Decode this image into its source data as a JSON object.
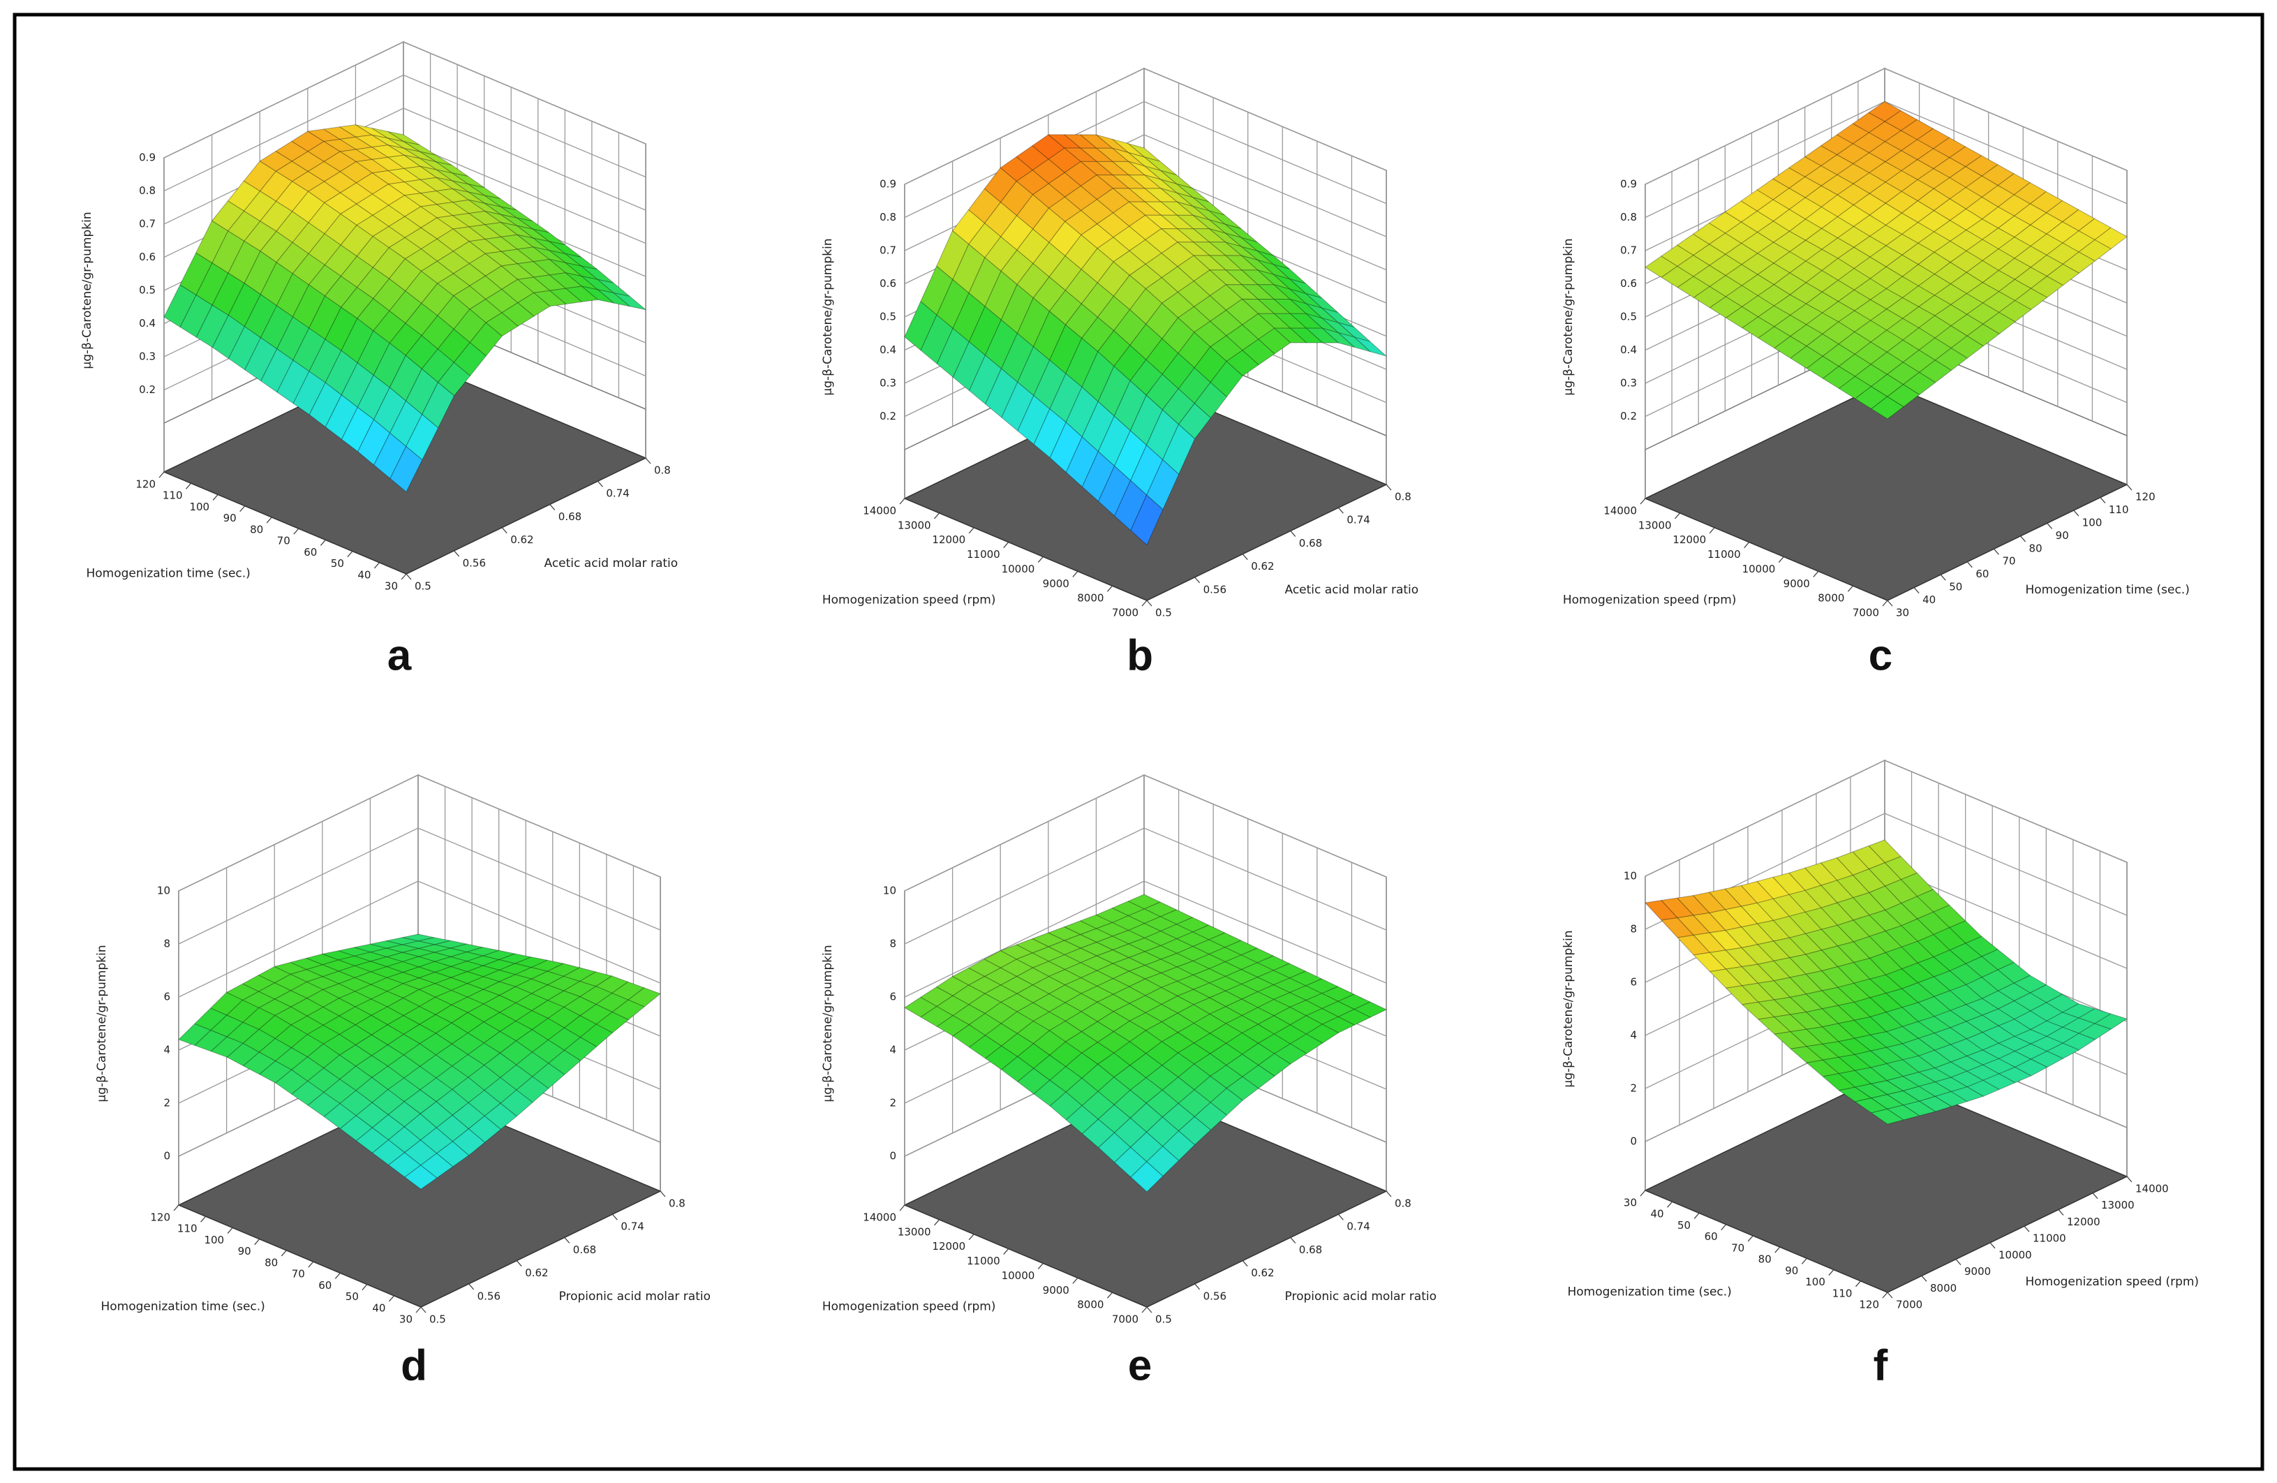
{
  "chart_data": [
    {
      "type": "surface3d",
      "title": "a",
      "xlabel": "Homogenization time (sec.)",
      "ylabel": "Acetic acid molar ratio",
      "zlabel": "µg-β-Carotene/gr-pumpkin",
      "xlim": [
        30,
        120
      ],
      "ylim": [
        0.5,
        0.8
      ],
      "zlim": [
        0.1,
        0.9
      ],
      "xticks": [
        30,
        40,
        50,
        60,
        70,
        80,
        90,
        100,
        110,
        120
      ],
      "yticks": [
        0.5,
        0.56,
        0.62,
        0.68,
        0.74,
        0.8
      ],
      "zticks": [
        0.2,
        0.3,
        0.4,
        0.5,
        0.6,
        0.7,
        0.8,
        0.9
      ],
      "floor_color": "#5a5a5a",
      "colormap": [
        "#2a4cff",
        "#22e6ff",
        "#2ed82e",
        "#f2e22a",
        "#ff2a00"
      ],
      "surface": {
        "x": [
          30,
          48,
          66,
          84,
          102,
          120
        ],
        "y": [
          0.5,
          0.56,
          0.62,
          0.68,
          0.74,
          0.8
        ],
        "z": [
          [
            0.2,
            0.42,
            0.53,
            0.55,
            0.5,
            0.4
          ],
          [
            0.26,
            0.48,
            0.59,
            0.61,
            0.56,
            0.46
          ],
          [
            0.31,
            0.53,
            0.64,
            0.66,
            0.61,
            0.51
          ],
          [
            0.35,
            0.57,
            0.68,
            0.7,
            0.65,
            0.55
          ],
          [
            0.39,
            0.61,
            0.72,
            0.74,
            0.69,
            0.59
          ],
          [
            0.42,
            0.64,
            0.75,
            0.77,
            0.72,
            0.62
          ]
        ]
      }
    },
    {
      "type": "surface3d",
      "title": "b",
      "xlabel": "Homogenization speed (rpm)",
      "ylabel": "Acetic acid molar ratio",
      "zlabel": "µg-β-Carotene/gr-pumpkin",
      "xlim": [
        7000,
        14000
      ],
      "ylim": [
        0.5,
        0.8
      ],
      "zlim": [
        0.1,
        0.9
      ],
      "xticks": [
        7000,
        8000,
        9000,
        10000,
        11000,
        12000,
        13000,
        14000
      ],
      "yticks": [
        0.5,
        0.56,
        0.62,
        0.68,
        0.74,
        0.8
      ],
      "zticks": [
        0.2,
        0.3,
        0.4,
        0.5,
        0.6,
        0.7,
        0.8,
        0.9
      ],
      "floor_color": "#5a5a5a",
      "colormap": [
        "#2a4cff",
        "#22e6ff",
        "#2ed82e",
        "#f2e22a",
        "#ff2a00"
      ],
      "surface": {
        "x": [
          7000,
          8400,
          9800,
          11200,
          12600,
          14000
        ],
        "y": [
          0.5,
          0.56,
          0.62,
          0.68,
          0.74,
          0.8
        ],
        "z": [
          [
            0.12,
            0.37,
            0.49,
            0.52,
            0.45,
            0.34
          ],
          [
            0.19,
            0.44,
            0.56,
            0.59,
            0.52,
            0.41
          ],
          [
            0.26,
            0.51,
            0.63,
            0.66,
            0.59,
            0.48
          ],
          [
            0.32,
            0.57,
            0.69,
            0.72,
            0.65,
            0.54
          ],
          [
            0.38,
            0.63,
            0.75,
            0.78,
            0.71,
            0.6
          ],
          [
            0.44,
            0.69,
            0.81,
            0.84,
            0.77,
            0.66
          ]
        ]
      }
    },
    {
      "type": "surface3d",
      "title": "c",
      "xlabel": "Homogenization speed (rpm)",
      "ylabel": "Homogenization time (sec.)",
      "zlabel": "µg-β-Carotene/gr-pumpkin",
      "xlim": [
        7000,
        14000
      ],
      "ylim": [
        30,
        120
      ],
      "zlim": [
        0.1,
        0.9
      ],
      "xticks": [
        7000,
        8000,
        9000,
        10000,
        11000,
        12000,
        13000,
        14000
      ],
      "yticks": [
        30,
        40,
        50,
        60,
        70,
        80,
        90,
        100,
        110,
        120
      ],
      "zticks": [
        0.2,
        0.3,
        0.4,
        0.5,
        0.6,
        0.7,
        0.8,
        0.9
      ],
      "floor_color": "#5a5a5a",
      "colormap": [
        "#2a4cff",
        "#22e6ff",
        "#2ed82e",
        "#f2e22a",
        "#ff2a00"
      ],
      "surface": {
        "x": [
          7000,
          8400,
          9800,
          11200,
          12600,
          14000
        ],
        "y": [
          30,
          48,
          66,
          84,
          102,
          120
        ],
        "z": [
          [
            0.5,
            0.54,
            0.58,
            0.62,
            0.66,
            0.7
          ],
          [
            0.53,
            0.57,
            0.61,
            0.64,
            0.68,
            0.72
          ],
          [
            0.56,
            0.6,
            0.63,
            0.67,
            0.7,
            0.74
          ],
          [
            0.59,
            0.62,
            0.66,
            0.69,
            0.73,
            0.76
          ],
          [
            0.62,
            0.65,
            0.68,
            0.72,
            0.75,
            0.78
          ],
          [
            0.65,
            0.68,
            0.71,
            0.74,
            0.77,
            0.8
          ]
        ]
      }
    },
    {
      "type": "surface3d",
      "title": "d",
      "xlabel": "Homogenization time (sec.)",
      "ylabel": "Propionic acid molar ratio",
      "zlabel": "µg-β-Carotene/gr-pumpkin",
      "xlim": [
        30,
        120
      ],
      "ylim": [
        0.5,
        0.8
      ],
      "zlim": [
        0,
        10
      ],
      "xticks": [
        30,
        40,
        50,
        60,
        70,
        80,
        90,
        100,
        110,
        120
      ],
      "yticks": [
        0.5,
        0.56,
        0.62,
        0.68,
        0.74,
        0.8
      ],
      "zticks": [
        0,
        2,
        4,
        6,
        8,
        10
      ],
      "floor_color": "#5a5a5a",
      "colormap": [
        "#2a4cff",
        "#22e6ff",
        "#2ed82e",
        "#f2e22a",
        "#ff2a00"
      ],
      "surface": {
        "x": [
          30,
          48,
          66,
          84,
          102,
          120
        ],
        "y": [
          0.5,
          0.56,
          0.62,
          0.68,
          0.74,
          0.8
        ],
        "z": [
          [
            2.6,
            3.0,
            3.6,
            4.3,
            5.0,
            5.6
          ],
          [
            3.2,
            3.8,
            4.3,
            4.8,
            5.2,
            5.5
          ],
          [
            3.8,
            4.4,
            4.8,
            5.1,
            5.2,
            5.2
          ],
          [
            4.3,
            4.9,
            5.1,
            5.2,
            5.0,
            4.8
          ],
          [
            4.5,
            5.2,
            5.3,
            5.1,
            4.8,
            4.4
          ],
          [
            4.4,
            5.3,
            5.4,
            5.0,
            4.5,
            4.0
          ]
        ]
      }
    },
    {
      "type": "surface3d",
      "title": "e",
      "xlabel": "Homogenization speed (rpm)",
      "ylabel": "Propionic acid molar ratio",
      "zlabel": "µg-β-Carotene/gr-pumpkin",
      "xlim": [
        7000,
        14000
      ],
      "ylim": [
        0.5,
        0.8
      ],
      "zlim": [
        0,
        10
      ],
      "xticks": [
        7000,
        8000,
        9000,
        10000,
        11000,
        12000,
        13000,
        14000
      ],
      "yticks": [
        0.5,
        0.56,
        0.62,
        0.68,
        0.74,
        0.8
      ],
      "zticks": [
        0,
        2,
        4,
        6,
        8,
        10
      ],
      "floor_color": "#5a5a5a",
      "colormap": [
        "#2a4cff",
        "#22e6ff",
        "#2ed82e",
        "#f2e22a",
        "#ff2a00"
      ],
      "surface": {
        "x": [
          7000,
          8400,
          9800,
          11200,
          12600,
          14000
        ],
        "y": [
          0.5,
          0.56,
          0.62,
          0.68,
          0.74,
          0.8
        ],
        "z": [
          [
            2.5,
            3.4,
            4.2,
            4.7,
            5.0,
            5.0
          ],
          [
            3.4,
            4.2,
            4.8,
            5.1,
            5.2,
            5.1
          ],
          [
            4.2,
            4.9,
            5.3,
            5.4,
            5.3,
            5.2
          ],
          [
            4.8,
            5.4,
            5.6,
            5.6,
            5.4,
            5.3
          ],
          [
            5.3,
            5.7,
            5.8,
            5.7,
            5.5,
            5.4
          ],
          [
            5.6,
            5.9,
            6.0,
            5.8,
            5.6,
            5.5
          ]
        ]
      }
    },
    {
      "type": "surface3d",
      "title": "f",
      "xlabel": "Homogenization time (sec.)",
      "ylabel": "Homogenization speed (rpm)",
      "zlabel": "µg-β-Carotene/gr-pumpkin",
      "xlim": [
        120,
        30
      ],
      "ylim": [
        7000,
        14000
      ],
      "zlim": [
        0,
        10
      ],
      "xticks": [
        30,
        40,
        50,
        60,
        70,
        80,
        90,
        100,
        110,
        120
      ],
      "yticks": [
        7000,
        8000,
        9000,
        10000,
        11000,
        12000,
        13000,
        14000
      ],
      "zticks": [
        0,
        2,
        4,
        6,
        8,
        10
      ],
      "floor_color": "#5a5a5a",
      "colormap": [
        "#2a4cff",
        "#22e6ff",
        "#2ed82e",
        "#f2e22a",
        "#ff2a00"
      ],
      "surface": {
        "x": [
          30,
          48,
          66,
          84,
          102,
          120
        ],
        "y": [
          7000,
          8400,
          9800,
          11200,
          12600,
          14000
        ],
        "z": [
          [
            9.0,
            8.4,
            7.9,
            7.5,
            7.2,
            7.0
          ],
          [
            7.8,
            7.2,
            6.7,
            6.3,
            6.0,
            5.9
          ],
          [
            6.7,
            6.1,
            5.6,
            5.2,
            5.0,
            4.9
          ],
          [
            5.8,
            5.2,
            4.7,
            4.4,
            4.2,
            4.2
          ],
          [
            5.0,
            4.5,
            4.1,
            3.9,
            3.8,
            3.9
          ],
          [
            4.5,
            4.1,
            3.8,
            3.7,
            3.8,
            4.1
          ]
        ]
      }
    }
  ]
}
